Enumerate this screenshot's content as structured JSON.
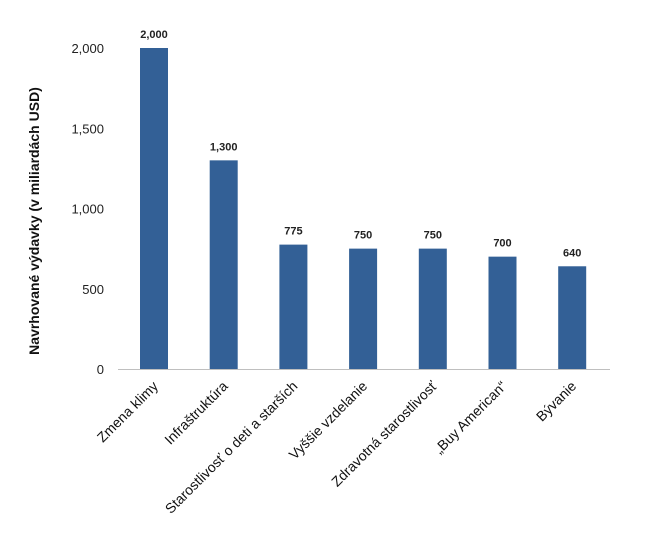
{
  "chart_data": {
    "type": "bar",
    "categories": [
      "Zmena klimy",
      "Infraštruktúra",
      "Starostlivosť o deti a starších",
      "Vyššie vzdelanie",
      "Zdravotná starostlivosť",
      "„Buy American“",
      "Bývanie"
    ],
    "values": [
      2000,
      1300,
      775,
      750,
      750,
      700,
      640
    ],
    "value_labels": [
      "2,000",
      "1,300",
      "775",
      "750",
      "750",
      "700",
      "640"
    ],
    "ylabel": "Navrhované výdavky (v miliardách USD)",
    "xlabel": "",
    "ylim": [
      0,
      2000
    ],
    "yticks": [
      0,
      500,
      1000,
      1500,
      2000
    ],
    "ytick_labels": [
      "0",
      "500",
      "1,000",
      "1,500",
      "2,000"
    ],
    "grid": false,
    "bar_color": "#336096",
    "axis_color": "#bfbfbf"
  }
}
